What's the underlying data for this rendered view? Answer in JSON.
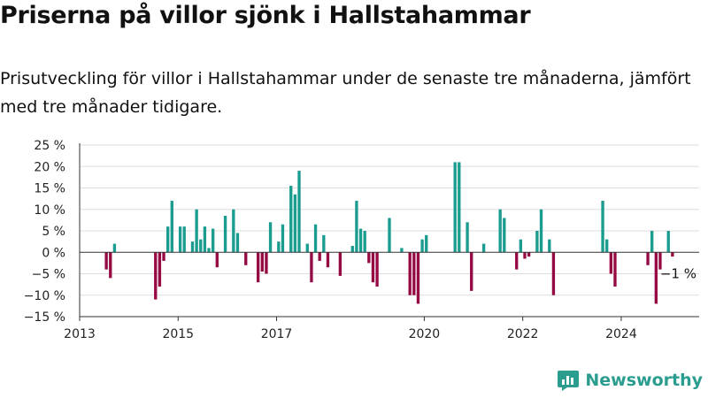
{
  "title": "Priserna på villor sjönk i Hallstahammar",
  "subtitle": "Prisutveckling för villor i Hallstahammar under de senaste tre månaderna, jämfört med tre månader tidigare.",
  "brand": {
    "name": "Newsworthy",
    "icon": "newsworthy-logo-icon"
  },
  "colors": {
    "positive": "#1a9c8f",
    "negative": "#960a44",
    "grid": "#dddddd",
    "axis": "#333333",
    "brand": "#2a9d8f"
  },
  "chart_data": {
    "type": "bar",
    "ylim": [
      -15,
      25
    ],
    "ylabel": "",
    "xlabel": "",
    "y_ticks": [
      -15,
      -10,
      -5,
      0,
      5,
      10,
      15,
      20,
      25
    ],
    "y_tick_labels": [
      "−15 %",
      "−10 %",
      "−5 %",
      "0 %",
      "5 %",
      "10 %",
      "15 %",
      "20 %",
      "25 %"
    ],
    "x_range": [
      "2013-01",
      "2025-08"
    ],
    "x_ticks": [
      "2013-01",
      "2015-01",
      "2017-01",
      "2020-01",
      "2022-01",
      "2024-01"
    ],
    "x_tick_labels": [
      "2013",
      "2015",
      "2017",
      "2020",
      "2022",
      "2024"
    ],
    "grid": true,
    "annotation": {
      "text": "−1 %",
      "x": "2025-01"
    },
    "series": [
      {
        "points": [
          {
            "x": "2013-07",
            "y": -4
          },
          {
            "x": "2013-08",
            "y": -6
          },
          {
            "x": "2013-09",
            "y": 2
          },
          {
            "x": "2014-07",
            "y": -11
          },
          {
            "x": "2014-08",
            "y": -8
          },
          {
            "x": "2014-09",
            "y": -2
          },
          {
            "x": "2014-10",
            "y": 6
          },
          {
            "x": "2014-11",
            "y": 12
          },
          {
            "x": "2015-01",
            "y": 6
          },
          {
            "x": "2015-02",
            "y": 6
          },
          {
            "x": "2015-04",
            "y": 2.5
          },
          {
            "x": "2015-05",
            "y": 10
          },
          {
            "x": "2015-06",
            "y": 3
          },
          {
            "x": "2015-07",
            "y": 6
          },
          {
            "x": "2015-08",
            "y": 1
          },
          {
            "x": "2015-09",
            "y": 5.5
          },
          {
            "x": "2015-10",
            "y": -3.5
          },
          {
            "x": "2015-12",
            "y": 8.5
          },
          {
            "x": "2016-02",
            "y": 10
          },
          {
            "x": "2016-03",
            "y": 4.5
          },
          {
            "x": "2016-05",
            "y": -3
          },
          {
            "x": "2016-08",
            "y": -7
          },
          {
            "x": "2016-09",
            "y": -4.5
          },
          {
            "x": "2016-10",
            "y": -5
          },
          {
            "x": "2016-11",
            "y": 7
          },
          {
            "x": "2017-01",
            "y": 2.5
          },
          {
            "x": "2017-02",
            "y": 6.5
          },
          {
            "x": "2017-04",
            "y": 15.5
          },
          {
            "x": "2017-05",
            "y": 13.5
          },
          {
            "x": "2017-06",
            "y": 19
          },
          {
            "x": "2017-08",
            "y": 2
          },
          {
            "x": "2017-09",
            "y": -7
          },
          {
            "x": "2017-10",
            "y": 6.5
          },
          {
            "x": "2017-11",
            "y": -2
          },
          {
            "x": "2017-12",
            "y": 4
          },
          {
            "x": "2018-01",
            "y": -3.5
          },
          {
            "x": "2018-04",
            "y": -5.5
          },
          {
            "x": "2018-07",
            "y": 1.5
          },
          {
            "x": "2018-08",
            "y": 12
          },
          {
            "x": "2018-09",
            "y": 5.5
          },
          {
            "x": "2018-10",
            "y": 5
          },
          {
            "x": "2018-11",
            "y": -2.5
          },
          {
            "x": "2018-12",
            "y": -7
          },
          {
            "x": "2019-01",
            "y": -8
          },
          {
            "x": "2019-04",
            "y": 8
          },
          {
            "x": "2019-07",
            "y": 1
          },
          {
            "x": "2019-09",
            "y": -10
          },
          {
            "x": "2019-10",
            "y": -10
          },
          {
            "x": "2019-11",
            "y": -12
          },
          {
            "x": "2019-12",
            "y": 3
          },
          {
            "x": "2020-01",
            "y": 4
          },
          {
            "x": "2020-08",
            "y": 21
          },
          {
            "x": "2020-09",
            "y": 21
          },
          {
            "x": "2020-11",
            "y": 7
          },
          {
            "x": "2020-12",
            "y": -9
          },
          {
            "x": "2021-03",
            "y": 2
          },
          {
            "x": "2021-07",
            "y": 10
          },
          {
            "x": "2021-08",
            "y": 8
          },
          {
            "x": "2021-11",
            "y": -4
          },
          {
            "x": "2021-12",
            "y": 3
          },
          {
            "x": "2022-01",
            "y": -1.5
          },
          {
            "x": "2022-02",
            "y": -1
          },
          {
            "x": "2022-04",
            "y": 5
          },
          {
            "x": "2022-05",
            "y": 10
          },
          {
            "x": "2022-07",
            "y": 3
          },
          {
            "x": "2022-08",
            "y": -10
          },
          {
            "x": "2023-08",
            "y": 12
          },
          {
            "x": "2023-09",
            "y": 3
          },
          {
            "x": "2023-10",
            "y": -5
          },
          {
            "x": "2023-11",
            "y": -8
          },
          {
            "x": "2024-07",
            "y": -3
          },
          {
            "x": "2024-08",
            "y": 5
          },
          {
            "x": "2024-09",
            "y": -12
          },
          {
            "x": "2024-10",
            "y": -4
          },
          {
            "x": "2024-12",
            "y": 5
          },
          {
            "x": "2025-01",
            "y": -1
          }
        ]
      }
    ]
  }
}
